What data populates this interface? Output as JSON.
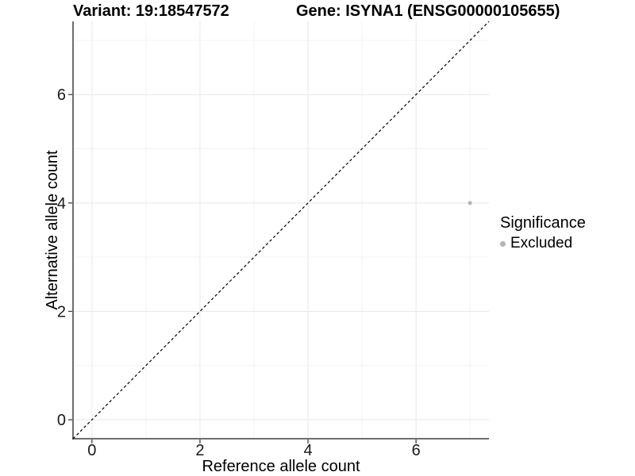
{
  "header": {
    "variant_title": "Variant: 19:18547572",
    "gene_title": "Gene: ISYNA1 (ENSG00000105655)"
  },
  "legend": {
    "title": "Significance",
    "items": [
      {
        "label": "Excluded",
        "color": "#b4b4b4"
      }
    ]
  },
  "chart_data": {
    "type": "scatter",
    "title": "Variant: 19:18547572   Gene: ISYNA1 (ENSG00000105655)",
    "xlabel": "Reference allele count",
    "ylabel": "Alternative allele count",
    "xlim": [
      -0.35,
      7.35
    ],
    "ylim": [
      -0.35,
      7.35
    ],
    "x_ticks": [
      0,
      2,
      4,
      6
    ],
    "y_ticks": [
      0,
      2,
      4,
      6
    ],
    "x_minor_ticks": [
      1,
      3,
      5,
      7
    ],
    "y_minor_ticks": [
      1,
      3,
      5,
      7
    ],
    "grid": true,
    "legend_position": "right",
    "series": [
      {
        "name": "Excluded",
        "color": "#b4b4b4",
        "points": [
          {
            "x": 7,
            "y": 4
          }
        ]
      }
    ],
    "reference_line": {
      "type": "identity",
      "equation": "y = x",
      "style": "dashed",
      "color": "#000000"
    }
  },
  "colors": {
    "background": "#ffffff",
    "grid_major": "#e8e8e8",
    "grid_minor": "#f3f3f3",
    "axis_line": "#3f3f3f",
    "tick_text": "#1a1a1a",
    "point": "#b4b4b4"
  }
}
